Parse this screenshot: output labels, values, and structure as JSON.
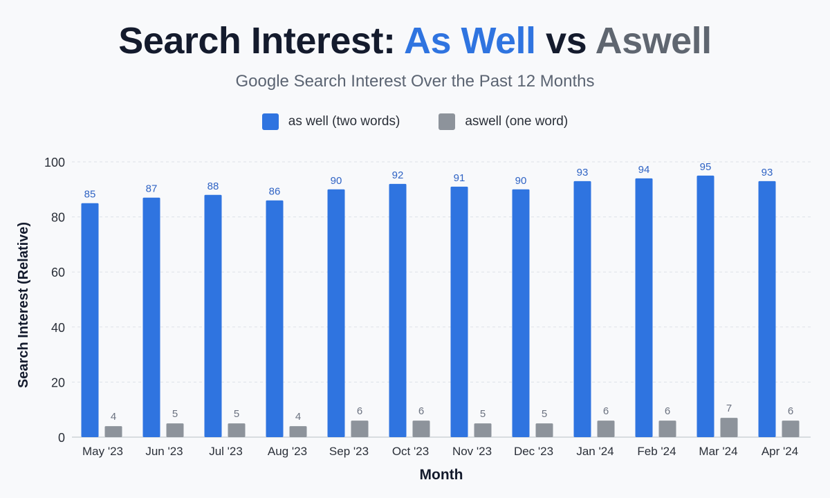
{
  "header": {
    "title_part1": "Search Interest: ",
    "title_part2": "As Well",
    "title_part3": " vs ",
    "title_part4": "Aswell",
    "subtitle": "Google Search Interest Over the Past 12 Months"
  },
  "colors": {
    "series1": "#2f74e0",
    "series2": "#8d939b",
    "series1_label": "#2f63c4",
    "series2_label": "#6b7280"
  },
  "chart_data": {
    "type": "bar",
    "title": "Search Interest: As Well vs Aswell",
    "subtitle": "Google Search Interest Over the Past 12 Months",
    "xlabel": "Month",
    "ylabel": "Search Interest (Relative)",
    "ylim": [
      0,
      100
    ],
    "yticks": [
      0,
      20,
      40,
      60,
      80,
      100
    ],
    "grid": true,
    "legend_position": "top-center",
    "categories": [
      "May '23",
      "Jun '23",
      "Jul '23",
      "Aug '23",
      "Sep '23",
      "Oct '23",
      "Nov '23",
      "Dec '23",
      "Jan '24",
      "Feb '24",
      "Mar '24",
      "Apr '24"
    ],
    "series": [
      {
        "name": "as well (two words)",
        "values": [
          85,
          87,
          88,
          86,
          90,
          92,
          91,
          90,
          93,
          94,
          95,
          93
        ]
      },
      {
        "name": "aswell (one word)",
        "values": [
          4,
          5,
          5,
          4,
          6,
          6,
          5,
          5,
          6,
          6,
          7,
          6
        ]
      }
    ]
  }
}
